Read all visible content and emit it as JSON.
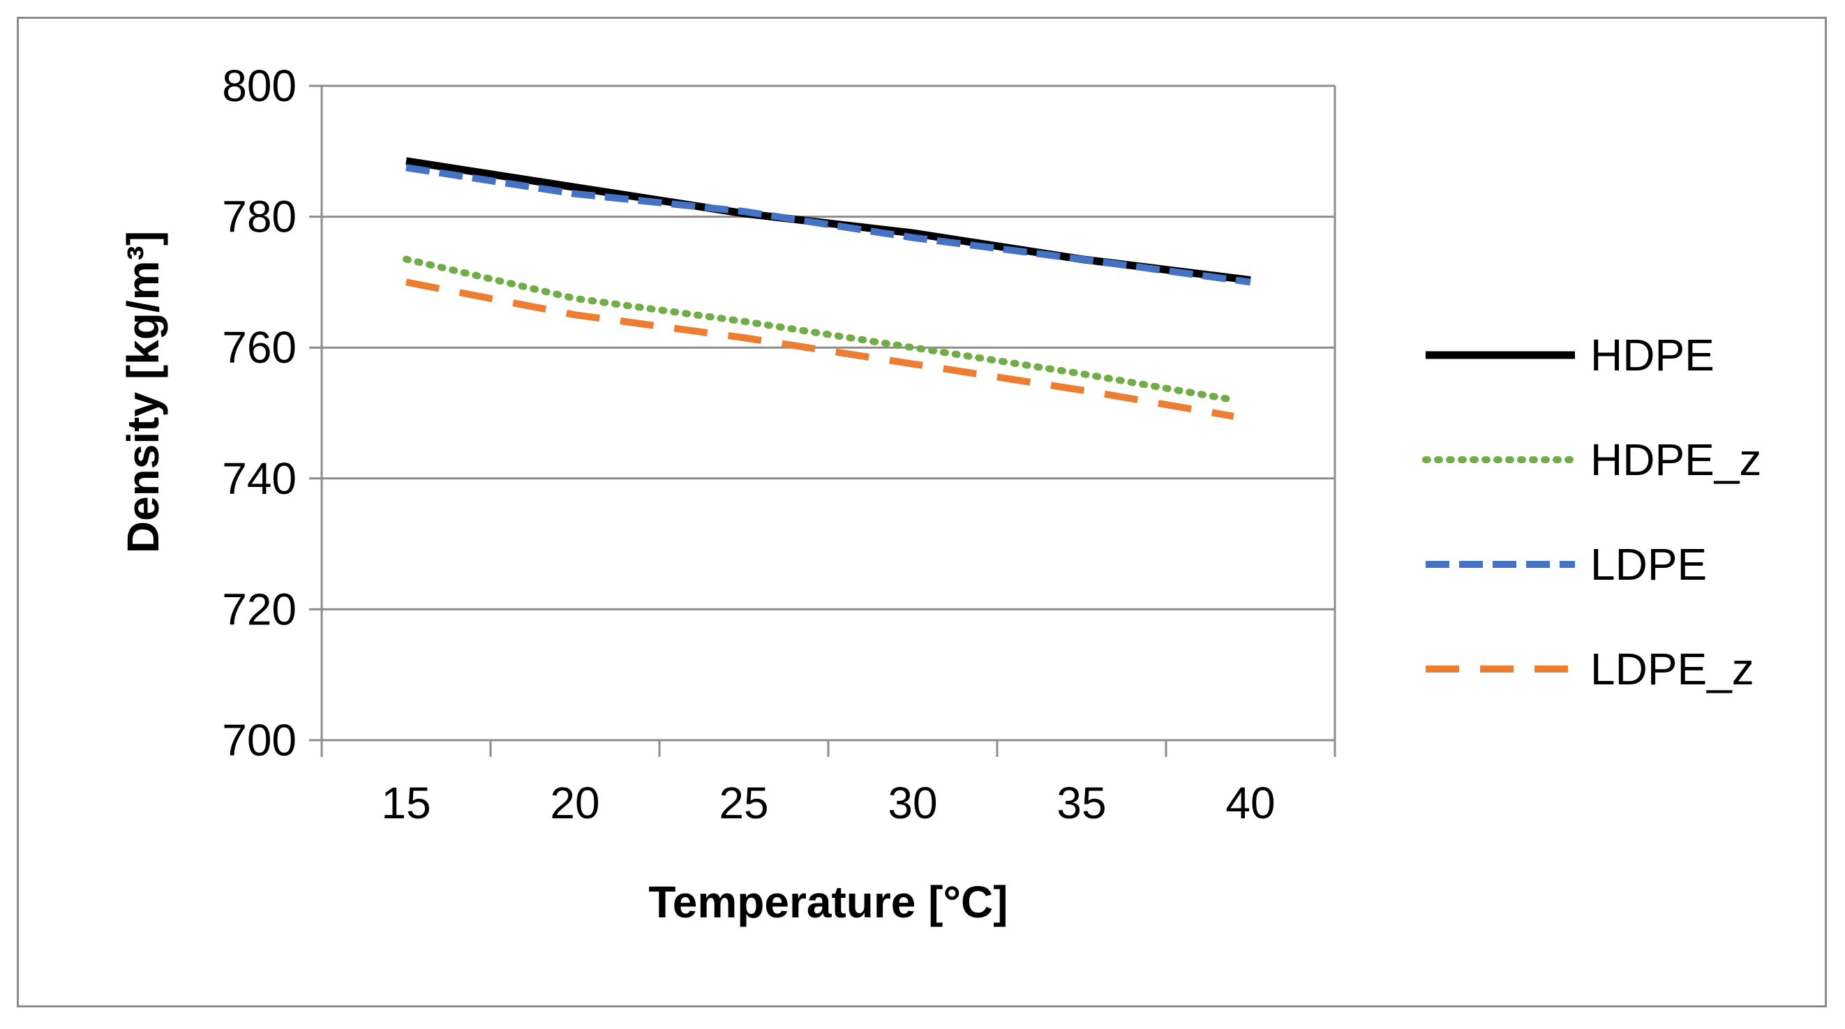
{
  "chart_data": {
    "type": "line",
    "title": "",
    "xlabel": "Temperature [°C]",
    "ylabel": "Density [kg/m³]",
    "x": [
      15,
      20,
      25,
      30,
      35,
      40
    ],
    "xlim": [
      12.5,
      42.5
    ],
    "ylim": [
      700,
      800
    ],
    "xticks": [
      15,
      20,
      25,
      30,
      35,
      40
    ],
    "yticks": [
      700,
      720,
      740,
      760,
      780,
      800
    ],
    "grid": "horizontal",
    "legend_position": "right",
    "series": [
      {
        "name": "HDPE",
        "color": "#000000",
        "style": "solid",
        "x": [
          15,
          20,
          25,
          30,
          35,
          40
        ],
        "values": [
          788.5,
          784.5,
          780.5,
          777.5,
          773.5,
          770.3
        ]
      },
      {
        "name": "HDPE_z",
        "color": "#70AD47",
        "style": "dotted",
        "x": [
          15,
          20,
          25,
          30,
          35,
          39.5
        ],
        "values": [
          773.5,
          767.5,
          764.0,
          760.0,
          756.0,
          752.0
        ]
      },
      {
        "name": "LDPE",
        "color": "#4472C4",
        "style": "dashed",
        "x": [
          15,
          20,
          25,
          30,
          35,
          40
        ],
        "values": [
          787.5,
          783.5,
          780.8,
          776.8,
          773.5,
          770.0
        ]
      },
      {
        "name": "LDPE_z",
        "color": "#ED7D31",
        "style": "longdash",
        "x": [
          15,
          20,
          25,
          30,
          35,
          39.5
        ],
        "values": [
          770.0,
          765.0,
          761.5,
          757.5,
          753.5,
          749.5
        ]
      }
    ]
  }
}
